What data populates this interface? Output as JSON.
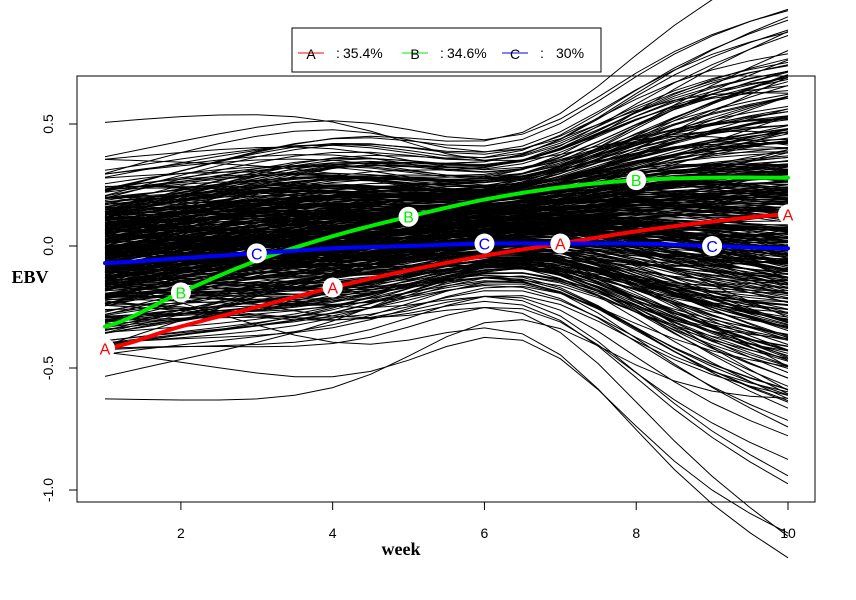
{
  "chart_data": {
    "type": "line",
    "xlabel": "week",
    "ylabel": "EBV",
    "xlim": [
      1,
      10
    ],
    "ylim": [
      -1.0,
      0.6
    ],
    "x_ticks": [
      "2",
      "4",
      "6",
      "8",
      "10"
    ],
    "y_ticks": [
      "0.5",
      "0.0",
      "-0.5",
      "-1.0"
    ],
    "grid": false,
    "legend_position": "top-center",
    "x": [
      1,
      2,
      3,
      4,
      5,
      6,
      7,
      8,
      9,
      10
    ],
    "series": [
      {
        "name": "A",
        "marker": "A",
        "share": "35.4%",
        "color": "#ff0000",
        "values": [
          -0.42,
          -0.33,
          -0.25,
          -0.17,
          -0.1,
          -0.04,
          0.01,
          0.06,
          0.1,
          0.13
        ],
        "marker_x": [
          1,
          4,
          7,
          10
        ]
      },
      {
        "name": "B",
        "marker": "B",
        "share": "34.6%",
        "color": "#00ee00",
        "values": [
          -0.33,
          -0.19,
          -0.06,
          0.04,
          0.12,
          0.19,
          0.24,
          0.27,
          0.28,
          0.28
        ],
        "marker_x": [
          2,
          5,
          8
        ]
      },
      {
        "name": "C",
        "marker": "C",
        "share": "30%",
        "color": "#0000ff",
        "values": [
          -0.07,
          -0.05,
          -0.03,
          -0.01,
          0.0,
          0.01,
          0.01,
          0.01,
          0.0,
          -0.01
        ],
        "marker_x": [
          3,
          6,
          9
        ]
      }
    ],
    "background_individual_curves": {
      "color": "#000000",
      "description_count_unlabeled": true
    }
  },
  "legend": {
    "items": [
      {
        "letter": "A",
        "sep": ":",
        "value": "35.4%"
      },
      {
        "letter": "B",
        "sep": ":",
        "value": "34.6%"
      },
      {
        "letter": "C",
        "sep": ":",
        "value": "30%"
      }
    ]
  }
}
